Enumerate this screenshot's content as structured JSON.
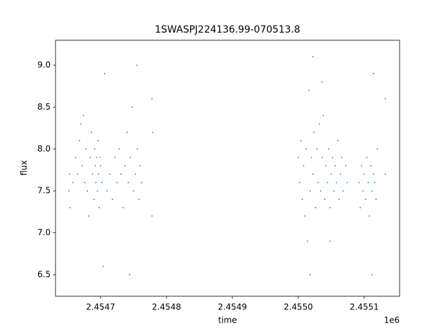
{
  "chart_data": {
    "type": "scatter",
    "title": "1SWASPJ224136.99-070513.8",
    "x_label": "time",
    "y_label": "flux",
    "x_offset_label": "1e6",
    "xlim": [
      2454631.6,
      2455153.7
    ],
    "ylim": [
      6.243,
      9.298
    ],
    "xticks": [
      {
        "value": 2454700,
        "label": "2.4547"
      },
      {
        "value": 2454800,
        "label": "2.4548"
      },
      {
        "value": 2454900,
        "label": "2.4549"
      },
      {
        "value": 2455000,
        "label": "2.4550"
      },
      {
        "value": 2455100,
        "label": "2.4551"
      }
    ],
    "yticks": [
      6.5,
      {
        "value": 7,
        "label": "7.0"
      },
      7.5,
      {
        "value": 8,
        "label": "8.0"
      },
      8.5,
      {
        "value": 9,
        "label": "9.0"
      }
    ],
    "series": [
      {
        "name": "flux",
        "color": "#1f77b4",
        "x": [
          2454652,
          2454653,
          2454654,
          2454658,
          2454662,
          2454665,
          2454668,
          2454670,
          2454672,
          2454674,
          2454676,
          2454678,
          2454680,
          2454682,
          2454684,
          2454686,
          2454688,
          2454690,
          2454691,
          2454692,
          2454693,
          2454694,
          2454695,
          2454696,
          2454697,
          2454698,
          2454699,
          2454700,
          2454702,
          2454704,
          2454706,
          2454710,
          2454714,
          2454718,
          2454722,
          2454725,
          2454728,
          2454731,
          2454734,
          2454737,
          2454740,
          2454742,
          2454745,
          2454748,
          2454750,
          2454753,
          2454756,
          2454758,
          2454760,
          2454762,
          2454744,
          2454755,
          2454778,
          2454779,
          2454778,
          2455000,
          2455002,
          2455004,
          2455006,
          2455008,
          2455010,
          2455012,
          2455014,
          2455016,
          2455018,
          2455020,
          2455022,
          2455024,
          2455026,
          2455028,
          2455030,
          2455032,
          2455034,
          2455036,
          2455038,
          2455040,
          2455042,
          2455044,
          2455046,
          2455048,
          2455050,
          2455052,
          2455054,
          2455056,
          2455058,
          2455060,
          2455062,
          2455064,
          2455066,
          2455068,
          2455072,
          2455074,
          2455022,
          2455018,
          2455048,
          2455036,
          2455092,
          2455094,
          2455096,
          2455098,
          2455100,
          2455102,
          2455104,
          2455106,
          2455108,
          2455110,
          2455112,
          2455114,
          2455116,
          2455118,
          2455112,
          2455114,
          2455120,
          2455132,
          2455132
        ],
        "values": [
          7.5,
          7.7,
          7.3,
          7.6,
          7.9,
          7.7,
          8.1,
          8.3,
          7.8,
          8.4,
          7.6,
          8.0,
          7.5,
          7.2,
          7.9,
          8.2,
          7.7,
          7.4,
          8.0,
          7.8,
          7.6,
          7.9,
          7.5,
          8.1,
          7.7,
          7.3,
          7.9,
          7.8,
          7.6,
          6.6,
          8.9,
          7.5,
          7.7,
          7.4,
          7.9,
          7.6,
          8.0,
          7.7,
          7.3,
          7.8,
          8.2,
          7.6,
          7.9,
          8.5,
          7.5,
          7.7,
          8.0,
          7.4,
          7.8,
          7.6,
          6.5,
          9.0,
          8.6,
          8.2,
          7.2,
          7.9,
          7.6,
          8.1,
          7.4,
          7.8,
          7.2,
          8.0,
          6.9,
          8.7,
          7.5,
          7.9,
          7.7,
          8.2,
          7.3,
          8.0,
          7.6,
          8.3,
          7.5,
          7.9,
          8.4,
          7.4,
          7.8,
          7.6,
          8.0,
          7.3,
          7.7,
          7.9,
          7.5,
          7.8,
          7.6,
          8.1,
          7.4,
          7.7,
          7.9,
          7.5,
          7.8,
          7.6,
          9.1,
          6.5,
          6.9,
          8.8,
          7.6,
          7.3,
          7.8,
          7.5,
          7.7,
          7.4,
          7.9,
          7.6,
          7.2,
          7.8,
          7.5,
          7.7,
          7.6,
          7.4,
          6.5,
          8.9,
          8.0,
          8.6,
          7.7
        ]
      }
    ]
  }
}
